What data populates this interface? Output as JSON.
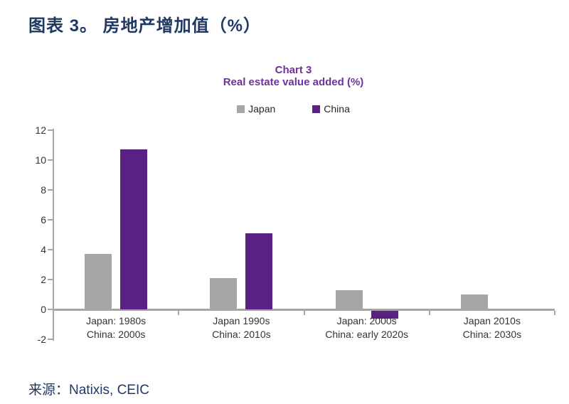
{
  "page": {
    "title": "图表 3。 房地产增加值（%）",
    "source": "来源：Natixis, CEIC"
  },
  "colors": {
    "title_navy": "#1F3864",
    "chart_purple": "#7030A0",
    "japan_gray": "#A6A6A6",
    "china_purple": "#5B2182",
    "axis_gray": "#A6A6A6",
    "label_dark": "#333333"
  },
  "chart_data": {
    "type": "bar",
    "title": "Chart 3",
    "subtitle": "Real estate value added (%)",
    "legend_position": "top",
    "grid": false,
    "ylim": [
      -2,
      12
    ],
    "y_ticks": [
      12,
      10,
      8,
      6,
      4,
      2,
      0,
      -2
    ],
    "categories": [
      {
        "line1": "Japan: 1980s",
        "line2": "China: 2000s"
      },
      {
        "line1": "Japan 1990s",
        "line2": "China: 2010s"
      },
      {
        "line1": "Japan: 2000s",
        "line2": "China: early 2020s"
      },
      {
        "line1": "Japan 2010s",
        "line2": "China: 2030s"
      }
    ],
    "series": [
      {
        "name": "Japan",
        "color": "#A6A6A6",
        "values": [
          3.7,
          2.1,
          1.3,
          1.0
        ]
      },
      {
        "name": "China",
        "color": "#5B2182",
        "values": [
          10.7,
          5.1,
          -0.5,
          null
        ]
      }
    ]
  }
}
